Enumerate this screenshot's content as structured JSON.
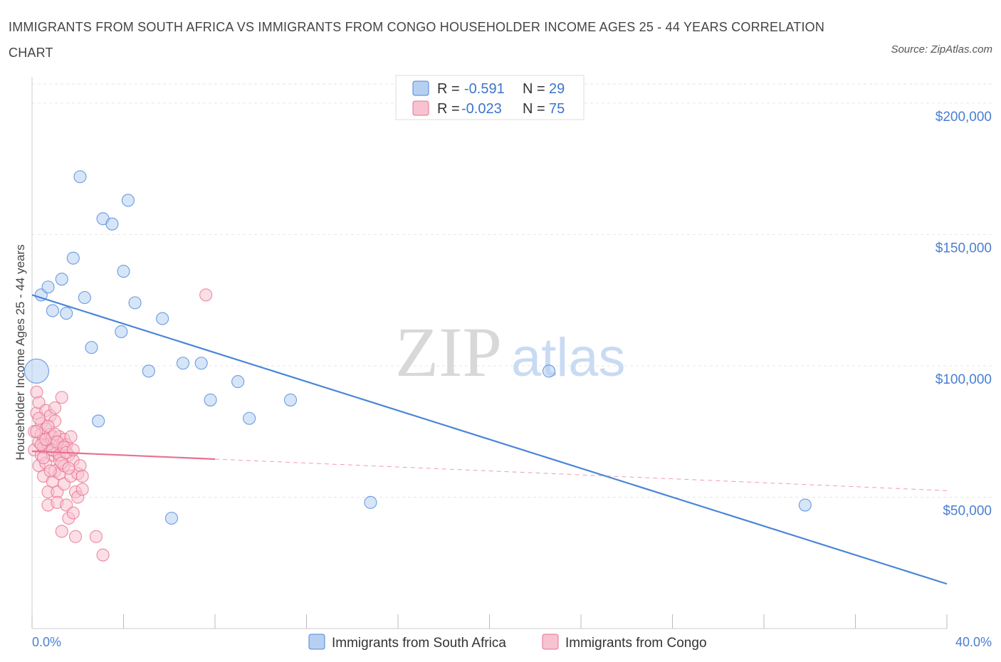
{
  "title": "IMMIGRANTS FROM SOUTH AFRICA VS IMMIGRANTS FROM CONGO HOUSEHOLDER INCOME AGES 25 - 44 YEARS CORRELATION CHART",
  "source": "Source: ZipAtlas.com",
  "watermark": {
    "zip": "ZIP",
    "atlas": "atlas"
  },
  "chart_data": {
    "type": "scatter",
    "xlabel": "",
    "ylabel": "Householder Income Ages 25 - 44 years",
    "xlim": [
      0,
      40
    ],
    "ylim": [
      0,
      210000
    ],
    "x_tick_labels": [
      "0.0%",
      "40.0%"
    ],
    "y_ticks": [
      50000,
      100000,
      150000,
      200000
    ],
    "y_tick_labels": [
      "$50,000",
      "$100,000",
      "$150,000",
      "$200,000"
    ],
    "grid": true,
    "legend": {
      "placement": "top-center",
      "rows": [
        {
          "r_label": "R = ",
          "r_value": "-0.591",
          "n_label": "N = ",
          "n_value": "29"
        },
        {
          "r_label": "R = ",
          "r_value": "-0.023",
          "n_label": "N = ",
          "n_value": "75"
        }
      ]
    },
    "series": [
      {
        "name": "Immigrants from South Africa",
        "color": "#4a86d8",
        "fill": "#b7d0f2",
        "trend": {
          "x0": 0,
          "y0": 127000,
          "x1": 40,
          "y1": 17000,
          "dashed_from": null
        },
        "points": [
          [
            0.2,
            98000
          ],
          [
            0.4,
            127000
          ],
          [
            0.7,
            130000
          ],
          [
            0.9,
            121000
          ],
          [
            1.3,
            133000
          ],
          [
            1.5,
            120000
          ],
          [
            1.8,
            141000
          ],
          [
            2.1,
            172000
          ],
          [
            2.3,
            126000
          ],
          [
            2.6,
            107000
          ],
          [
            2.9,
            79000
          ],
          [
            3.1,
            156000
          ],
          [
            3.5,
            154000
          ],
          [
            3.9,
            113000
          ],
          [
            4.0,
            136000
          ],
          [
            4.2,
            163000
          ],
          [
            4.5,
            124000
          ],
          [
            5.1,
            98000
          ],
          [
            5.7,
            118000
          ],
          [
            6.1,
            42000
          ],
          [
            6.6,
            101000
          ],
          [
            7.4,
            101000
          ],
          [
            7.8,
            87000
          ],
          [
            9.0,
            94000
          ],
          [
            9.5,
            80000
          ],
          [
            11.3,
            87000
          ],
          [
            14.8,
            48000
          ],
          [
            22.6,
            98000
          ],
          [
            33.8,
            47000
          ]
        ]
      },
      {
        "name": "Immigrants from Congo",
        "color": "#e8708f",
        "fill": "#f7c3d1",
        "trend": {
          "x0": 0,
          "y0": 67500,
          "x1": 40,
          "y1": 52500,
          "dashed_from": 8
        },
        "points": [
          [
            0.1,
            68000
          ],
          [
            0.1,
            75000
          ],
          [
            0.2,
            82000
          ],
          [
            0.2,
            90000
          ],
          [
            0.3,
            71000
          ],
          [
            0.3,
            86000
          ],
          [
            0.3,
            62000
          ],
          [
            0.4,
            74000
          ],
          [
            0.4,
            66000
          ],
          [
            0.4,
            78000
          ],
          [
            0.5,
            72000
          ],
          [
            0.5,
            69000
          ],
          [
            0.5,
            58000
          ],
          [
            0.6,
            76000
          ],
          [
            0.6,
            83000
          ],
          [
            0.6,
            63000
          ],
          [
            0.7,
            70000
          ],
          [
            0.7,
            52000
          ],
          [
            0.7,
            47000
          ],
          [
            0.8,
            68000
          ],
          [
            0.8,
            81000
          ],
          [
            0.8,
            74000
          ],
          [
            0.9,
            73000
          ],
          [
            0.9,
            66000
          ],
          [
            0.9,
            56000
          ],
          [
            1.0,
            71000
          ],
          [
            1.0,
            60000
          ],
          [
            1.0,
            79000
          ],
          [
            1.0,
            84000
          ],
          [
            1.1,
            67000
          ],
          [
            1.1,
            52000
          ],
          [
            1.1,
            48000
          ],
          [
            1.2,
            73000
          ],
          [
            1.2,
            64000
          ],
          [
            1.2,
            59000
          ],
          [
            1.3,
            69000
          ],
          [
            1.3,
            88000
          ],
          [
            1.3,
            37000
          ],
          [
            1.4,
            72000
          ],
          [
            1.4,
            62000
          ],
          [
            1.4,
            55000
          ],
          [
            1.5,
            70000
          ],
          [
            1.5,
            47000
          ],
          [
            1.6,
            66000
          ],
          [
            1.6,
            42000
          ],
          [
            1.7,
            73000
          ],
          [
            1.7,
            58000
          ],
          [
            1.8,
            64000
          ],
          [
            1.8,
            44000
          ],
          [
            1.9,
            52000
          ],
          [
            1.9,
            35000
          ],
          [
            2.0,
            59000
          ],
          [
            2.0,
            50000
          ],
          [
            2.1,
            62000
          ],
          [
            2.2,
            53000
          ],
          [
            0.2,
            75000
          ],
          [
            0.3,
            80000
          ],
          [
            0.4,
            70000
          ],
          [
            0.5,
            65000
          ],
          [
            0.6,
            72000
          ],
          [
            0.7,
            77000
          ],
          [
            0.8,
            60000
          ],
          [
            0.9,
            68000
          ],
          [
            1.0,
            74000
          ],
          [
            1.1,
            71000
          ],
          [
            1.2,
            66000
          ],
          [
            1.3,
            63000
          ],
          [
            1.4,
            69000
          ],
          [
            1.5,
            67000
          ],
          [
            1.6,
            61000
          ],
          [
            2.2,
            58000
          ],
          [
            2.8,
            35000
          ],
          [
            3.1,
            28000
          ],
          [
            7.6,
            127000
          ],
          [
            1.8,
            68000
          ]
        ]
      }
    ]
  }
}
